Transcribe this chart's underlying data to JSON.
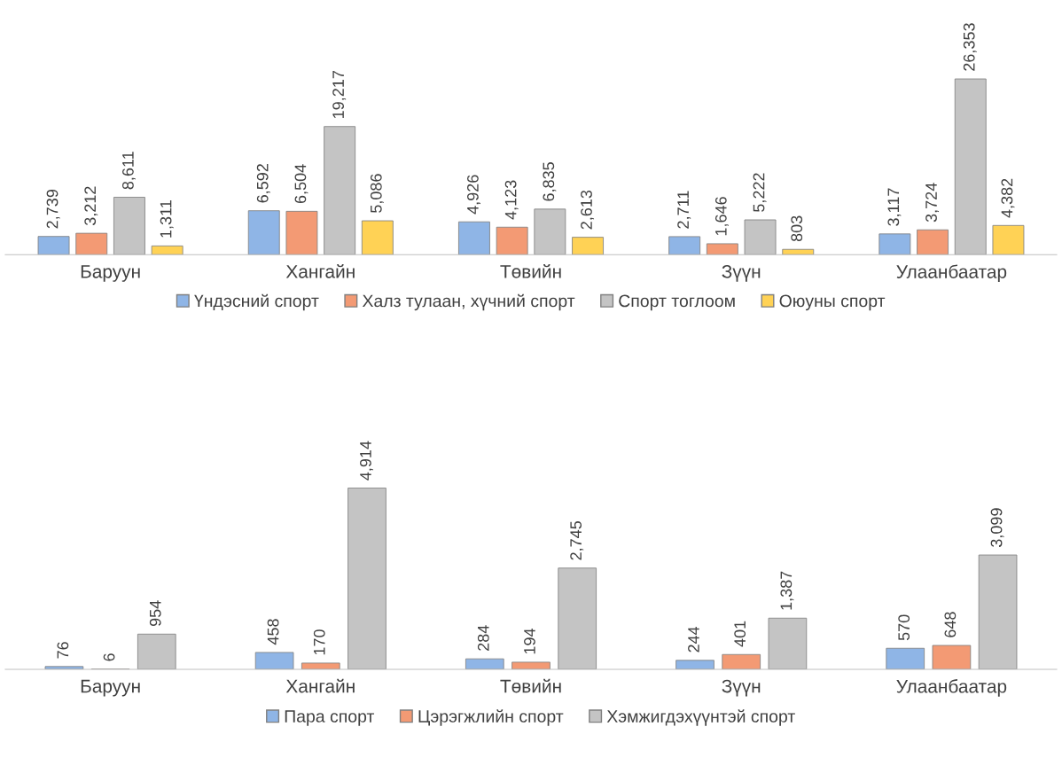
{
  "chart_data": [
    {
      "type": "bar",
      "categories": [
        "Баруун",
        "Хангайн",
        "Төвийн",
        "Зүүн",
        "Улаанбаатар"
      ],
      "legend": "bottom",
      "grid": false,
      "series": [
        {
          "name": "Үндэсний спорт",
          "color": "#8fb5e6",
          "values": [
            2739,
            6592,
            4926,
            2711,
            3117
          ],
          "value_labels": [
            "2,739",
            "6,592",
            "4,926",
            "2,711",
            "3,117"
          ]
        },
        {
          "name": "Халз тулаан, хүчний спорт",
          "color": "#f39a74",
          "values": [
            3212,
            6504,
            4123,
            1646,
            3724
          ],
          "value_labels": [
            "3,212",
            "6,504",
            "4,123",
            "1,646",
            "3,724"
          ]
        },
        {
          "name": "Спорт тоглоом",
          "color": "#c4c4c4",
          "values": [
            8611,
            19217,
            6835,
            5222,
            26353
          ],
          "value_labels": [
            "8,611",
            "19,217",
            "6,835",
            "5,222",
            "26,353"
          ]
        },
        {
          "name": "Оюуны спорт",
          "color": "#ffd255",
          "values": [
            1311,
            5086,
            2613,
            803,
            4382
          ],
          "value_labels": [
            "1,311",
            "5,086",
            "2,613",
            "803",
            "4,382"
          ]
        }
      ]
    },
    {
      "type": "bar",
      "categories": [
        "Баруун",
        "Хангайн",
        "Төвийн",
        "Зүүн",
        "Улаанбаатар"
      ],
      "legend": "bottom",
      "grid": false,
      "series": [
        {
          "name": "Пара спорт",
          "color": "#8fb5e6",
          "values": [
            76,
            458,
            284,
            244,
            570
          ],
          "value_labels": [
            "76",
            "458",
            "284",
            "244",
            "570"
          ]
        },
        {
          "name": "Цэрэгжлийн спорт",
          "color": "#f39a74",
          "values": [
            6,
            170,
            194,
            401,
            648
          ],
          "value_labels": [
            "6",
            "170",
            "194",
            "401",
            "648"
          ]
        },
        {
          "name": "Хэмжигдэхүүнтэй спорт",
          "color": "#c4c4c4",
          "values": [
            954,
            4914,
            2745,
            1387,
            3099
          ],
          "value_labels": [
            "954",
            "4,914",
            "2,745",
            "1,387",
            "3,099"
          ]
        }
      ]
    }
  ]
}
